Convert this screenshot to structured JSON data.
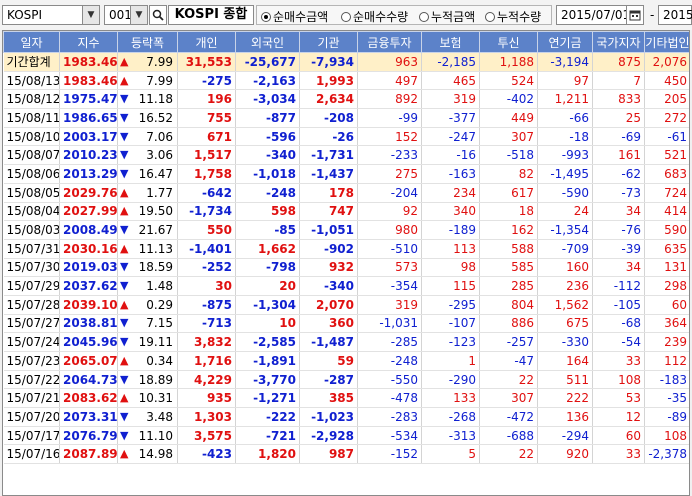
{
  "toolbar": {
    "market_select": "KOSPI",
    "code_input": "001",
    "title": "KOSPI 종합",
    "radios": [
      {
        "label": "순매수금액",
        "checked": true
      },
      {
        "label": "순매수수량",
        "checked": false
      },
      {
        "label": "누적금액",
        "checked": false
      },
      {
        "label": "누적수량",
        "checked": false
      }
    ],
    "start_date": "2015/07/01",
    "tilde": "-",
    "end_date": "2015"
  },
  "colors": {
    "header_bg": "#5c82c9",
    "up": "#e01010",
    "down": "#1020d0",
    "total_row_bg": "#fff0c8"
  },
  "table": {
    "columns": [
      "일자",
      "지수",
      "등락폭",
      "개인",
      "외국인",
      "기관",
      "금융투자",
      "보험",
      "투신",
      "연기금",
      "국가지자",
      "기타법인"
    ],
    "rows": [
      {
        "date": "기간합계",
        "index": "1983.46",
        "chg_dir": "up",
        "chg": "7.99",
        "values": [
          "31,553",
          "-25,677",
          "-7,934",
          "963",
          "-2,185",
          "1,188",
          "-3,194",
          "875",
          "2,076"
        ]
      },
      {
        "date": "15/08/13",
        "index": "1983.46",
        "chg_dir": "up",
        "chg": "7.99",
        "values": [
          "-275",
          "-2,163",
          "1,993",
          "497",
          "465",
          "524",
          "97",
          "7",
          "450"
        ]
      },
      {
        "date": "15/08/12",
        "index": "1975.47",
        "chg_dir": "dn",
        "chg": "11.18",
        "values": [
          "196",
          "-3,034",
          "2,634",
          "892",
          "319",
          "-402",
          "1,211",
          "833",
          "205"
        ]
      },
      {
        "date": "15/08/11",
        "index": "1986.65",
        "chg_dir": "dn",
        "chg": "16.52",
        "values": [
          "755",
          "-877",
          "-208",
          "-99",
          "-377",
          "449",
          "-66",
          "25",
          "272"
        ]
      },
      {
        "date": "15/08/10",
        "index": "2003.17",
        "chg_dir": "dn",
        "chg": "7.06",
        "values": [
          "671",
          "-596",
          "-26",
          "152",
          "-247",
          "307",
          "-18",
          "-69",
          "-61"
        ]
      },
      {
        "date": "15/08/07",
        "index": "2010.23",
        "chg_dir": "dn",
        "chg": "3.06",
        "values": [
          "1,517",
          "-340",
          "-1,731",
          "-233",
          "-16",
          "-518",
          "-993",
          "161",
          "521"
        ]
      },
      {
        "date": "15/08/06",
        "index": "2013.29",
        "chg_dir": "dn",
        "chg": "16.47",
        "values": [
          "1,758",
          "-1,018",
          "-1,437",
          "275",
          "-163",
          "82",
          "-1,495",
          "-62",
          "683"
        ]
      },
      {
        "date": "15/08/05",
        "index": "2029.76",
        "chg_dir": "up",
        "chg": "1.77",
        "values": [
          "-642",
          "-248",
          "178",
          "-204",
          "234",
          "617",
          "-590",
          "-73",
          "724"
        ]
      },
      {
        "date": "15/08/04",
        "index": "2027.99",
        "chg_dir": "up",
        "chg": "19.50",
        "values": [
          "-1,734",
          "598",
          "747",
          "92",
          "340",
          "18",
          "24",
          "34",
          "414"
        ]
      },
      {
        "date": "15/08/03",
        "index": "2008.49",
        "chg_dir": "dn",
        "chg": "21.67",
        "values": [
          "550",
          "-85",
          "-1,051",
          "980",
          "-189",
          "162",
          "-1,354",
          "-76",
          "590"
        ]
      },
      {
        "date": "15/07/31",
        "index": "2030.16",
        "chg_dir": "up",
        "chg": "11.13",
        "values": [
          "-1,401",
          "1,662",
          "-902",
          "-510",
          "113",
          "588",
          "-709",
          "-39",
          "635"
        ]
      },
      {
        "date": "15/07/30",
        "index": "2019.03",
        "chg_dir": "dn",
        "chg": "18.59",
        "values": [
          "-252",
          "-798",
          "932",
          "573",
          "98",
          "585",
          "160",
          "34",
          "131"
        ]
      },
      {
        "date": "15/07/29",
        "index": "2037.62",
        "chg_dir": "dn",
        "chg": "1.48",
        "values": [
          "30",
          "20",
          "-340",
          "-354",
          "115",
          "285",
          "236",
          "-112",
          "298"
        ]
      },
      {
        "date": "15/07/28",
        "index": "2039.10",
        "chg_dir": "up",
        "chg": "0.29",
        "values": [
          "-875",
          "-1,304",
          "2,070",
          "319",
          "-295",
          "804",
          "1,562",
          "-105",
          "60"
        ]
      },
      {
        "date": "15/07/27",
        "index": "2038.81",
        "chg_dir": "dn",
        "chg": "7.15",
        "values": [
          "-713",
          "10",
          "360",
          "-1,031",
          "-107",
          "886",
          "675",
          "-68",
          "364"
        ]
      },
      {
        "date": "15/07/24",
        "index": "2045.96",
        "chg_dir": "dn",
        "chg": "19.11",
        "values": [
          "3,832",
          "-2,585",
          "-1,487",
          "-285",
          "-123",
          "-257",
          "-330",
          "-54",
          "239"
        ]
      },
      {
        "date": "15/07/23",
        "index": "2065.07",
        "chg_dir": "up",
        "chg": "0.34",
        "values": [
          "1,716",
          "-1,891",
          "59",
          "-248",
          "1",
          "-47",
          "164",
          "33",
          "112"
        ]
      },
      {
        "date": "15/07/22",
        "index": "2064.73",
        "chg_dir": "dn",
        "chg": "18.89",
        "values": [
          "4,229",
          "-3,770",
          "-287",
          "-550",
          "-290",
          "22",
          "511",
          "108",
          "-183"
        ]
      },
      {
        "date": "15/07/21",
        "index": "2083.62",
        "chg_dir": "up",
        "chg": "10.31",
        "values": [
          "935",
          "-1,271",
          "385",
          "-478",
          "133",
          "307",
          "222",
          "53",
          "-35"
        ]
      },
      {
        "date": "15/07/20",
        "index": "2073.31",
        "chg_dir": "dn",
        "chg": "3.48",
        "values": [
          "1,303",
          "-222",
          "-1,023",
          "-283",
          "-268",
          "-472",
          "136",
          "12",
          "-89"
        ]
      },
      {
        "date": "15/07/17",
        "index": "2076.79",
        "chg_dir": "dn",
        "chg": "11.10",
        "values": [
          "3,575",
          "-721",
          "-2,928",
          "-534",
          "-313",
          "-688",
          "-294",
          "60",
          "108"
        ]
      },
      {
        "date": "15/07/16",
        "index": "2087.89",
        "chg_dir": "up",
        "chg": "14.98",
        "values": [
          "-423",
          "1,820",
          "987",
          "-152",
          "5",
          "22",
          "920",
          "33",
          "-2,378"
        ]
      }
    ]
  }
}
